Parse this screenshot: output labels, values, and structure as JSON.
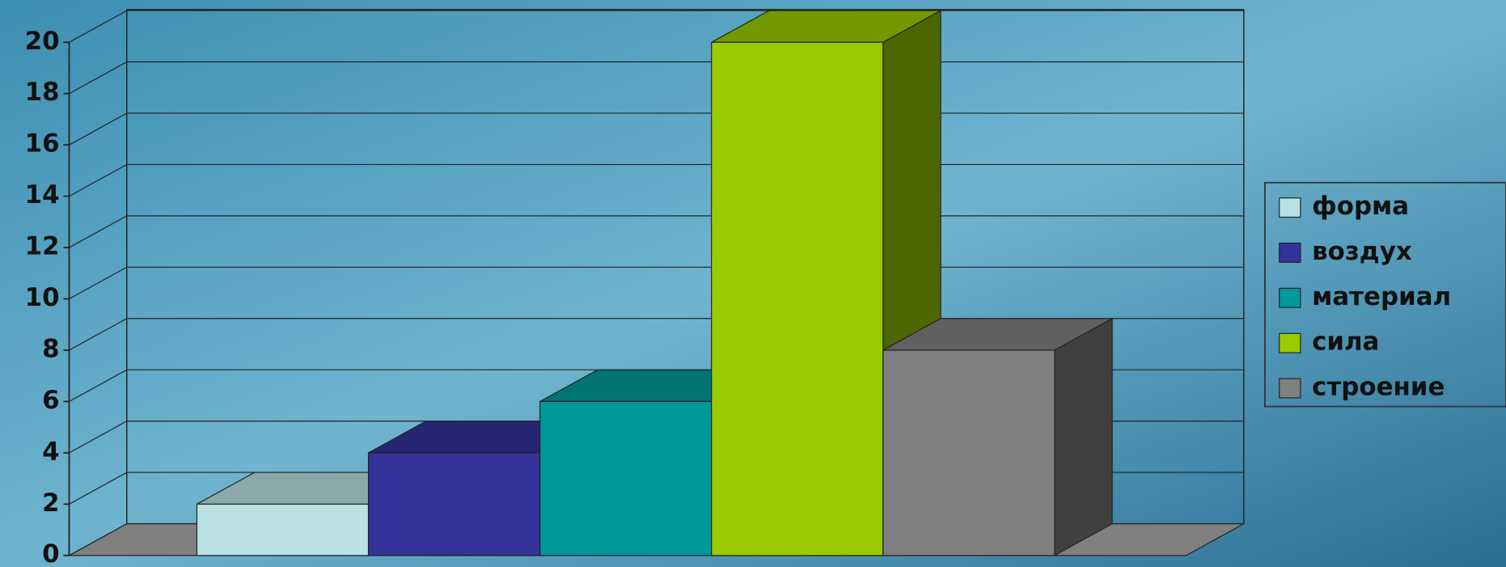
{
  "chart_data": {
    "type": "bar",
    "series": [
      {
        "name": "форма",
        "color": "#b9e1e3",
        "values": [
          2
        ]
      },
      {
        "name": "воздух",
        "color": "#333399",
        "values": [
          4
        ]
      },
      {
        "name": "материал",
        "color": "#009999",
        "values": [
          6
        ]
      },
      {
        "name": "сила",
        "color": "#99cc00",
        "values": [
          20
        ]
      },
      {
        "name": "строение",
        "color": "#808080",
        "values": [
          8
        ]
      }
    ],
    "ylim": [
      0,
      20
    ],
    "yticks": [
      0,
      2,
      4,
      6,
      8,
      10,
      12,
      14,
      16,
      18,
      20
    ],
    "grid": true,
    "legend": "right"
  }
}
